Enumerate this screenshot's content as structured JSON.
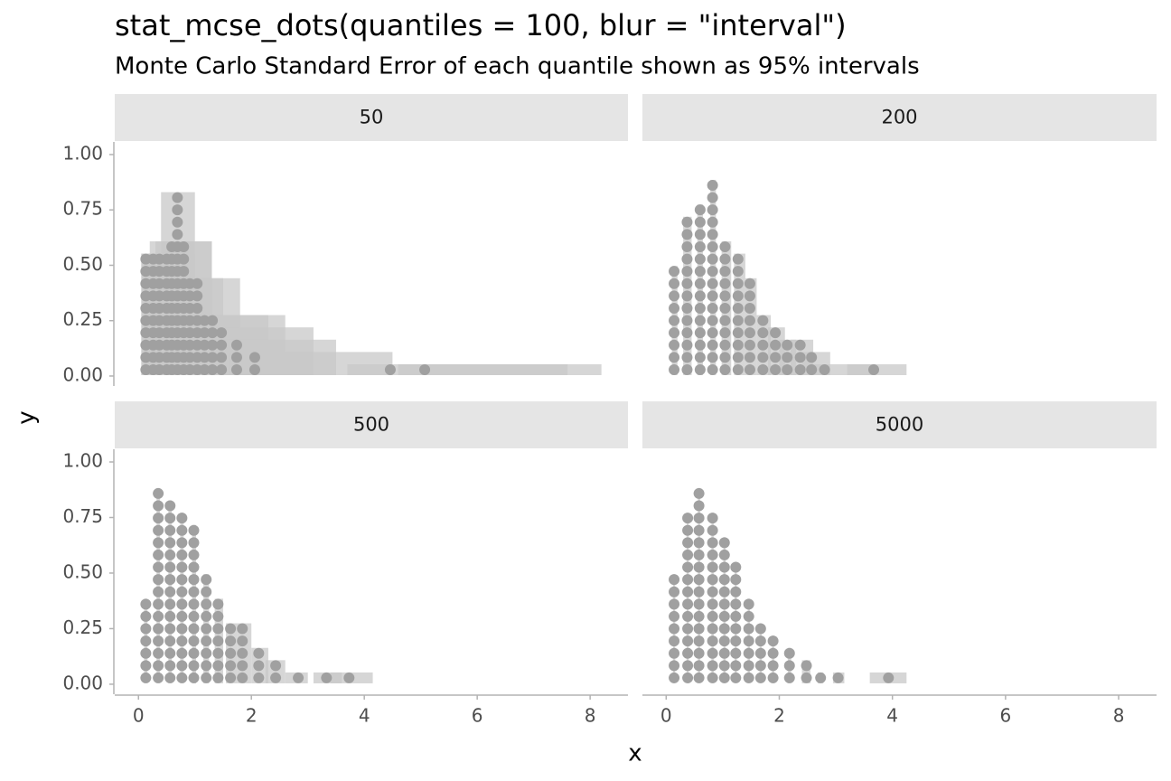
{
  "chart_data": {
    "type": "dots",
    "title": "stat_mcse_dots(quantiles = 100, blur = \"interval\")",
    "subtitle": "Monte Carlo Standard Error of each quantile shown as 95% intervals",
    "xlabel": "x",
    "ylabel": "y",
    "xlim": [
      -0.42,
      8.67
    ],
    "ylim": [
      -0.045,
      1.057
    ],
    "xticks": [
      0,
      2,
      4,
      6,
      8
    ],
    "yticks": [
      {
        "value": 0,
        "label": "0.00"
      },
      {
        "value": 0.25,
        "label": "0.25"
      },
      {
        "value": 0.5,
        "label": "0.50"
      },
      {
        "value": 0.75,
        "label": "0.75"
      },
      {
        "value": 1,
        "label": "1.00"
      }
    ],
    "color": "#a0a0a0",
    "interval_color": "#c8c8c8",
    "facets": [
      {
        "label": "50",
        "x": [
          0.13,
          0.26,
          0.37,
          0.5,
          0.59,
          0.69,
          0.8,
          0.91,
          1.04,
          1.17,
          1.31,
          1.47,
          1.74,
          2.06,
          4.46,
          5.07
        ],
        "counts": [
          10,
          10,
          10,
          10,
          11,
          15,
          11,
          8,
          8,
          5,
          5,
          4,
          3,
          2,
          1,
          1
        ],
        "lower": [
          0.05,
          0.05,
          0.1,
          0.15,
          0.2,
          0.4,
          0.3,
          0.5,
          0.6,
          0.8,
          0.9,
          1.1,
          1.3,
          1.6,
          3.7,
          4.6
        ],
        "upper": [
          0.7,
          0.8,
          1.0,
          1.0,
          1.3,
          1.0,
          1.3,
          1.5,
          1.8,
          2.3,
          2.6,
          3.1,
          3.5,
          4.5,
          7.6,
          8.2
        ]
      },
      {
        "label": "200",
        "x": [
          0.14,
          0.37,
          0.6,
          0.82,
          1.04,
          1.27,
          1.48,
          1.71,
          1.93,
          2.14,
          2.37,
          2.57,
          2.8,
          3.67
        ],
        "counts": [
          9,
          13,
          14,
          16,
          11,
          10,
          8,
          5,
          4,
          3,
          3,
          2,
          1,
          1
        ],
        "lower": [
          0.1,
          0.3,
          0.55,
          0.78,
          0.98,
          1.2,
          1.4,
          1.6,
          1.8,
          2.0,
          2.2,
          2.4,
          2.6,
          3.2
        ],
        "upper": [
          0.2,
          0.45,
          0.65,
          0.88,
          1.15,
          1.4,
          1.6,
          1.85,
          2.1,
          2.3,
          2.6,
          2.9,
          3.7,
          4.25
        ]
      },
      {
        "label": "500",
        "x": [
          0.13,
          0.35,
          0.56,
          0.77,
          0.98,
          1.2,
          1.41,
          1.63,
          1.84,
          2.13,
          2.43,
          2.83,
          3.33,
          3.73
        ],
        "counts": [
          7,
          16,
          15,
          14,
          13,
          9,
          7,
          5,
          5,
          3,
          2,
          1,
          1,
          1
        ],
        "lower": [
          0.1,
          0.32,
          0.53,
          0.74,
          0.95,
          1.15,
          1.35,
          1.55,
          1.75,
          2.0,
          2.25,
          2.6,
          3.1,
          3.4
        ],
        "upper": [
          0.16,
          0.38,
          0.59,
          0.8,
          1.02,
          1.25,
          1.5,
          1.75,
          2.0,
          2.3,
          2.6,
          3.0,
          3.6,
          4.15
        ]
      },
      {
        "label": "5000",
        "x": [
          0.14,
          0.38,
          0.58,
          0.82,
          1.03,
          1.23,
          1.46,
          1.67,
          1.89,
          2.18,
          2.48,
          2.73,
          3.04,
          3.93
        ],
        "counts": [
          9,
          14,
          16,
          14,
          12,
          10,
          7,
          5,
          4,
          3,
          2,
          1,
          1,
          1
        ],
        "lower": [
          0.12,
          0.36,
          0.56,
          0.8,
          1.01,
          1.21,
          1.44,
          1.65,
          1.87,
          2.15,
          2.4,
          2.68,
          2.95,
          3.6
        ],
        "upper": [
          0.16,
          0.4,
          0.6,
          0.84,
          1.05,
          1.25,
          1.48,
          1.69,
          1.91,
          2.21,
          2.55,
          2.78,
          3.15,
          4.25
        ]
      }
    ]
  }
}
